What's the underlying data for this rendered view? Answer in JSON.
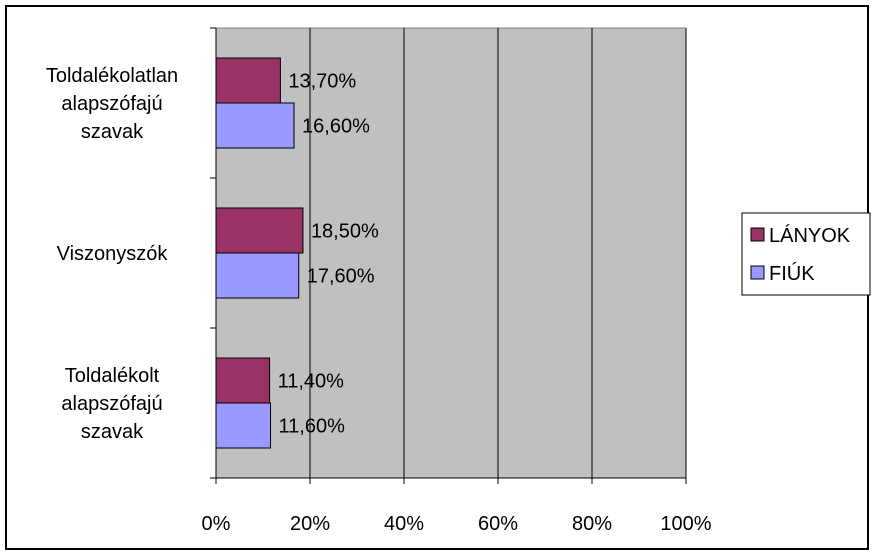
{
  "chart_data": {
    "type": "bar",
    "orientation": "horizontal",
    "categories": [
      [
        "Toldalékolatlan",
        "alapszófajú",
        "szavak"
      ],
      [
        "Viszonyszók"
      ],
      [
        "Toldalékolt",
        "alapszófajú",
        "szavak"
      ]
    ],
    "series": [
      {
        "name": "LÁNYOK",
        "color": "#993366",
        "values": [
          13.7,
          18.5,
          11.4
        ],
        "labels": [
          "13,70%",
          "18,50%",
          "11,40%"
        ]
      },
      {
        "name": "FIÚK",
        "color": "#9999ff",
        "values": [
          16.6,
          17.6,
          11.6
        ],
        "labels": [
          "16,60%",
          "17,60%",
          "11,60%"
        ]
      }
    ],
    "xlim": [
      0,
      100
    ],
    "xticks": [
      "0%",
      "20%",
      "40%",
      "60%",
      "80%",
      "100%"
    ],
    "plot_background": "#c0c0c0",
    "grid": true,
    "legend_position": "right"
  }
}
